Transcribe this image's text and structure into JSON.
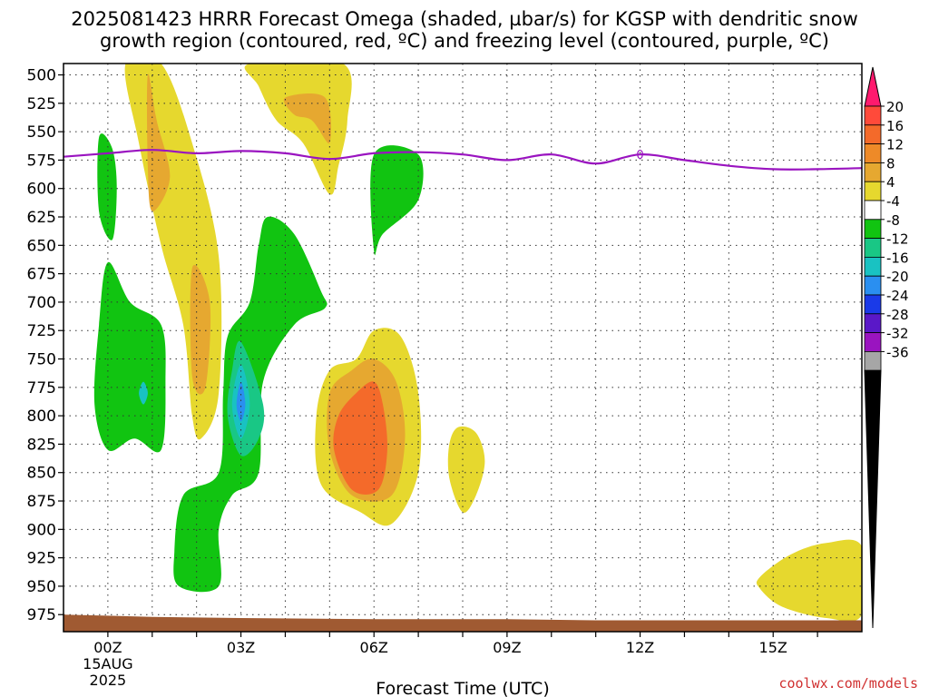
{
  "title_line1": "2025081423 HRRR Forecast Omega (shaded, µbar/s) for KGSP with dendritic snow",
  "title_line2": "growth region (contoured, red, ºC) and freezing level (contoured, purple, ºC)",
  "credit": "coolwx.com/models",
  "chart_data": {
    "type": "contour",
    "xlabel": "Forecast Time (UTC)",
    "x_ticks": [
      {
        "hour": 0,
        "label": "00Z",
        "sub1": "15AUG",
        "sub2": "2025"
      },
      {
        "hour": 3,
        "label": "03Z",
        "sub1": "",
        "sub2": ""
      },
      {
        "hour": 6,
        "label": "06Z",
        "sub1": "",
        "sub2": ""
      },
      {
        "hour": 9,
        "label": "09Z",
        "sub1": "",
        "sub2": ""
      },
      {
        "hour": 12,
        "label": "12Z",
        "sub1": "",
        "sub2": ""
      },
      {
        "hour": 15,
        "label": "15Z",
        "sub1": "",
        "sub2": ""
      }
    ],
    "xlim": [
      -1,
      17
    ],
    "ylim_pressure_hPa": [
      490,
      990
    ],
    "y_ticks": [
      500,
      525,
      550,
      575,
      600,
      625,
      650,
      675,
      700,
      725,
      750,
      775,
      800,
      825,
      850,
      875,
      900,
      925,
      950,
      975
    ],
    "grid": true,
    "colorbar": {
      "labels": [
        "20",
        "16",
        "12",
        "8",
        "4",
        "-4",
        "-8",
        "-12",
        "-16",
        "-20",
        "-24",
        "-28",
        "-32",
        "-36"
      ],
      "colors": [
        "#ff1a6e",
        "#ff4a3a",
        "#f46a2a",
        "#ee8a28",
        "#e6a830",
        "#e6d82e",
        "#ffffff",
        "#11c411",
        "#19c785",
        "#19c2c2",
        "#2a8ff0",
        "#1a3ae8",
        "#5a18c8",
        "#9a14c0",
        "#a6a6a6",
        "#000000"
      ]
    },
    "freezing_level": {
      "label": "0",
      "label_hour": 12,
      "color": "#9a14c0",
      "points": [
        [
          -1,
          572
        ],
        [
          0,
          569
        ],
        [
          1,
          566
        ],
        [
          2,
          569
        ],
        [
          3,
          567
        ],
        [
          4,
          569
        ],
        [
          5,
          574
        ],
        [
          6,
          569
        ],
        [
          7,
          568
        ],
        [
          8,
          570
        ],
        [
          9,
          575
        ],
        [
          10,
          570
        ],
        [
          11,
          578
        ],
        [
          12,
          570
        ],
        [
          13,
          575
        ],
        [
          14,
          580
        ],
        [
          15,
          583
        ],
        [
          16,
          583
        ],
        [
          17,
          582
        ]
      ]
    },
    "omega_regions": [
      {
        "level": 4,
        "color": "#e6d82e",
        "points": [
          [
            0.4,
            490
          ],
          [
            1.2,
            490
          ],
          [
            1.9,
            560
          ],
          [
            2.5,
            660
          ],
          [
            2.5,
            780
          ],
          [
            2.1,
            820
          ],
          [
            1.9,
            800
          ],
          [
            1.7,
            720
          ],
          [
            1.2,
            650
          ],
          [
            0.7,
            560
          ]
        ]
      },
      {
        "level": 8,
        "color": "#e6a830",
        "points": [
          [
            0.9,
            500
          ],
          [
            1.1,
            540
          ],
          [
            1.4,
            590
          ],
          [
            1.0,
            620
          ],
          [
            0.9,
            580
          ]
        ]
      },
      {
        "level": 4,
        "color": "#e6d82e",
        "points": [
          [
            3.2,
            490
          ],
          [
            5.3,
            490
          ],
          [
            5.4,
            540
          ],
          [
            5.2,
            580
          ],
          [
            5.0,
            605
          ],
          [
            4.4,
            560
          ],
          [
            3.8,
            540
          ],
          [
            3.4,
            510
          ]
        ]
      },
      {
        "level": 8,
        "color": "#e6a830",
        "points": [
          [
            4.0,
            520
          ],
          [
            4.9,
            520
          ],
          [
            5.0,
            560
          ],
          [
            4.6,
            540
          ],
          [
            4.2,
            535
          ]
        ]
      },
      {
        "level": 8,
        "color": "#e6a830",
        "points": [
          [
            1.9,
            670
          ],
          [
            2.3,
            700
          ],
          [
            2.2,
            775
          ],
          [
            1.9,
            765
          ]
        ]
      },
      {
        "level": -4,
        "color": "#11c411",
        "points": [
          [
            -0.2,
            555
          ],
          [
            0.1,
            565
          ],
          [
            0.2,
            600
          ],
          [
            0.1,
            645
          ],
          [
            -0.2,
            620
          ]
        ]
      },
      {
        "level": -4,
        "color": "#11c411",
        "points": [
          [
            6.0,
            570
          ],
          [
            7.0,
            570
          ],
          [
            7.0,
            610
          ],
          [
            6.2,
            640
          ],
          [
            6.0,
            655
          ]
        ]
      },
      {
        "level": -4,
        "color": "#11c411",
        "points": [
          [
            0.0,
            665
          ],
          [
            0.5,
            700
          ],
          [
            1.2,
            720
          ],
          [
            1.3,
            770
          ],
          [
            1.2,
            830
          ],
          [
            0.6,
            820
          ],
          [
            0.0,
            830
          ],
          [
            -0.3,
            790
          ],
          [
            -0.2,
            720
          ]
        ]
      },
      {
        "level": -4,
        "color": "#11c411",
        "points": [
          [
            3.6,
            625
          ],
          [
            4.2,
            640
          ],
          [
            4.8,
            690
          ],
          [
            4.9,
            705
          ],
          [
            4.2,
            720
          ],
          [
            3.5,
            770
          ],
          [
            3.4,
            850
          ],
          [
            2.8,
            870
          ],
          [
            2.5,
            900
          ],
          [
            2.5,
            950
          ],
          [
            1.6,
            950
          ],
          [
            1.5,
            920
          ],
          [
            1.7,
            870
          ],
          [
            2.5,
            850
          ],
          [
            2.6,
            780
          ],
          [
            2.7,
            730
          ],
          [
            3.2,
            700
          ],
          [
            3.4,
            650
          ]
        ]
      },
      {
        "level": -8,
        "color": "#19c785",
        "points": [
          [
            3.0,
            735
          ],
          [
            3.5,
            790
          ],
          [
            3.4,
            820
          ],
          [
            3.0,
            835
          ],
          [
            2.7,
            800
          ],
          [
            2.8,
            760
          ]
        ]
      },
      {
        "level": -12,
        "color": "#19c2c2",
        "points": [
          [
            3.0,
            755
          ],
          [
            3.2,
            790
          ],
          [
            3.0,
            820
          ],
          [
            2.8,
            790
          ]
        ]
      },
      {
        "level": -16,
        "color": "#2a8ff0",
        "points": [
          [
            3.0,
            770
          ],
          [
            3.1,
            790
          ],
          [
            3.0,
            805
          ],
          [
            2.9,
            790
          ]
        ]
      },
      {
        "level": -12,
        "color": "#19c2c2",
        "points": [
          [
            0.8,
            770
          ],
          [
            0.9,
            780
          ],
          [
            0.8,
            790
          ],
          [
            0.7,
            780
          ]
        ]
      },
      {
        "level": 4,
        "color": "#e6d82e",
        "points": [
          [
            5.6,
            750
          ],
          [
            6.0,
            725
          ],
          [
            6.6,
            730
          ],
          [
            7.0,
            780
          ],
          [
            7.0,
            850
          ],
          [
            6.4,
            895
          ],
          [
            5.7,
            885
          ],
          [
            4.8,
            860
          ],
          [
            4.7,
            800
          ],
          [
            5.0,
            760
          ]
        ]
      },
      {
        "level": 8,
        "color": "#e6a830",
        "points": [
          [
            6.0,
            750
          ],
          [
            6.5,
            770
          ],
          [
            6.7,
            820
          ],
          [
            6.4,
            870
          ],
          [
            5.5,
            870
          ],
          [
            5.0,
            830
          ],
          [
            5.0,
            780
          ],
          [
            5.5,
            760
          ]
        ]
      },
      {
        "level": 12,
        "color": "#f46a2a",
        "points": [
          [
            6.0,
            770
          ],
          [
            6.2,
            790
          ],
          [
            6.3,
            830
          ],
          [
            6.1,
            865
          ],
          [
            5.5,
            865
          ],
          [
            5.1,
            830
          ],
          [
            5.2,
            800
          ],
          [
            5.6,
            780
          ]
        ]
      },
      {
        "level": 4,
        "color": "#e6d82e",
        "points": [
          [
            7.9,
            810
          ],
          [
            8.3,
            815
          ],
          [
            8.5,
            840
          ],
          [
            8.3,
            870
          ],
          [
            8.0,
            885
          ],
          [
            7.7,
            855
          ],
          [
            7.7,
            825
          ]
        ]
      },
      {
        "level": 4,
        "color": "#e6d82e",
        "points": [
          [
            17.0,
            915
          ],
          [
            16.2,
            912
          ],
          [
            15.4,
            922
          ],
          [
            14.7,
            942
          ],
          [
            14.7,
            952
          ],
          [
            15.2,
            968
          ],
          [
            16.2,
            978
          ],
          [
            17.0,
            975
          ]
        ]
      }
    ],
    "terrain": {
      "color": "#a05a32",
      "points": [
        [
          -1,
          975
        ],
        [
          1,
          977
        ],
        [
          3,
          978
        ],
        [
          6,
          979
        ],
        [
          9,
          979
        ],
        [
          11,
          980
        ],
        [
          14,
          980
        ],
        [
          17,
          980
        ]
      ]
    }
  }
}
